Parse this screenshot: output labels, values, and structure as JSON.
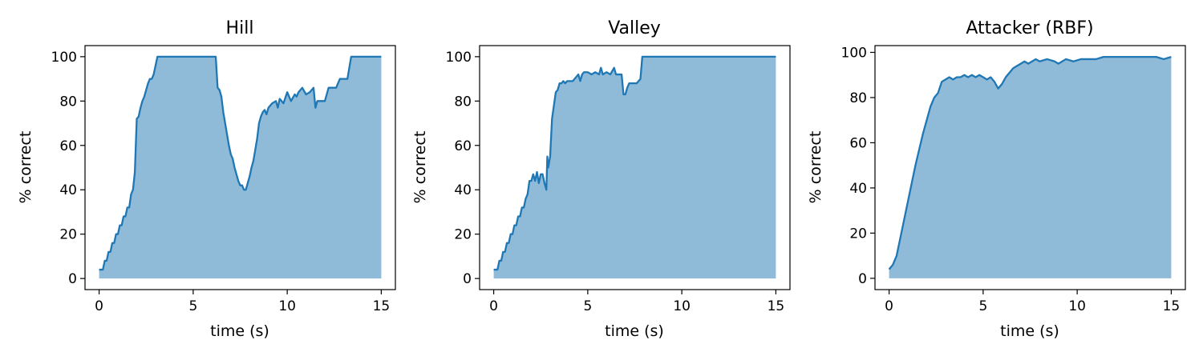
{
  "chart_data": [
    {
      "type": "area",
      "title": "Hill",
      "xlabel": "time (s)",
      "ylabel": "% correct",
      "xlim": [
        -0.75,
        15.75
      ],
      "ylim": [
        -5,
        105
      ],
      "xticks": [
        0,
        5,
        10,
        15
      ],
      "yticks": [
        0,
        20,
        40,
        60,
        80,
        100
      ],
      "color": "#1f77b4",
      "x": [
        0,
        0.2,
        0.3,
        0.4,
        0.5,
        0.6,
        0.7,
        0.8,
        0.9,
        1.0,
        1.1,
        1.2,
        1.3,
        1.4,
        1.5,
        1.6,
        1.7,
        1.8,
        1.9,
        2.0,
        2.1,
        2.2,
        2.3,
        2.4,
        2.5,
        2.6,
        2.7,
        2.8,
        2.9,
        3.0,
        3.1,
        3.2,
        6.2,
        6.3,
        6.4,
        6.5,
        6.6,
        6.7,
        6.8,
        6.9,
        7.0,
        7.1,
        7.2,
        7.3,
        7.4,
        7.5,
        7.6,
        7.7,
        7.8,
        8.0,
        8.1,
        8.2,
        8.3,
        8.4,
        8.5,
        8.6,
        8.7,
        8.8,
        8.9,
        9.0,
        9.2,
        9.4,
        9.5,
        9.6,
        9.8,
        10.0,
        10.2,
        10.4,
        10.5,
        10.6,
        10.8,
        11.0,
        11.2,
        11.4,
        11.5,
        11.6,
        11.8,
        12.0,
        12.2,
        12.4,
        12.6,
        12.8,
        13.0,
        13.2,
        13.3,
        13.4,
        15.0
      ],
      "values": [
        4,
        4,
        8,
        8,
        12,
        12,
        16,
        16,
        20,
        20,
        24,
        24,
        28,
        28,
        32,
        32,
        38,
        40,
        48,
        72,
        73,
        77,
        80,
        82,
        85,
        88,
        90,
        90,
        92,
        96,
        100,
        100,
        100,
        86,
        85,
        82,
        75,
        70,
        65,
        60,
        56,
        54,
        50,
        47,
        44,
        42,
        42,
        40,
        40,
        46,
        50,
        53,
        58,
        63,
        70,
        73,
        75,
        76,
        74,
        77,
        79,
        80,
        77,
        81,
        79,
        84,
        80,
        83,
        82,
        84,
        86,
        83,
        84,
        86,
        77,
        80,
        80,
        80,
        86,
        86,
        86,
        90,
        90,
        90,
        95,
        100,
        100
      ]
    },
    {
      "type": "area",
      "title": "Valley",
      "xlabel": "time (s)",
      "ylabel": "% correct",
      "xlim": [
        -0.75,
        15.75
      ],
      "ylim": [
        -5,
        105
      ],
      "xticks": [
        0,
        5,
        10,
        15
      ],
      "yticks": [
        0,
        20,
        40,
        60,
        80,
        100
      ],
      "color": "#1f77b4",
      "x": [
        0,
        0.2,
        0.3,
        0.4,
        0.5,
        0.6,
        0.7,
        0.8,
        0.9,
        1.0,
        1.1,
        1.2,
        1.3,
        1.4,
        1.5,
        1.6,
        1.7,
        1.8,
        1.9,
        2.0,
        2.1,
        2.2,
        2.3,
        2.4,
        2.5,
        2.6,
        2.7,
        2.8,
        2.85,
        2.9,
        3.0,
        3.1,
        3.2,
        3.3,
        3.4,
        3.5,
        3.6,
        3.7,
        3.8,
        3.9,
        4.0,
        4.2,
        4.4,
        4.5,
        4.6,
        4.7,
        4.8,
        5.0,
        5.2,
        5.4,
        5.6,
        5.7,
        5.8,
        6.0,
        6.2,
        6.4,
        6.5,
        6.6,
        6.8,
        6.9,
        7.0,
        7.1,
        7.2,
        7.4,
        7.6,
        7.8,
        7.9,
        15.0
      ],
      "values": [
        4,
        4,
        8,
        8,
        12,
        12,
        16,
        16,
        20,
        20,
        24,
        24,
        28,
        28,
        32,
        32,
        36,
        38,
        44,
        44,
        47,
        44,
        48,
        43,
        47,
        47,
        43,
        40,
        55,
        50,
        55,
        72,
        78,
        84,
        85,
        88,
        88,
        89,
        88,
        89,
        89,
        89,
        91,
        92,
        89,
        92,
        93,
        93,
        92,
        93,
        92,
        95,
        92,
        93,
        92,
        95,
        92,
        92,
        92,
        83,
        83,
        86,
        88,
        88,
        88,
        90,
        100,
        100
      ]
    },
    {
      "type": "area",
      "title": "Attacker (RBF)",
      "xlabel": "time (s)",
      "ylabel": "% correct",
      "xlim": [
        -0.75,
        15.75
      ],
      "ylim": [
        -5,
        103
      ],
      "xticks": [
        0,
        5,
        10,
        15
      ],
      "yticks": [
        0,
        20,
        40,
        60,
        80,
        100
      ],
      "color": "#1f77b4",
      "x": [
        0,
        0.2,
        0.4,
        0.6,
        0.8,
        1.0,
        1.2,
        1.4,
        1.6,
        1.8,
        2.0,
        2.2,
        2.4,
        2.6,
        2.8,
        3.0,
        3.2,
        3.4,
        3.6,
        3.8,
        4.0,
        4.2,
        4.4,
        4.6,
        4.8,
        5.0,
        5.2,
        5.4,
        5.6,
        5.8,
        6.0,
        6.2,
        6.4,
        6.6,
        6.8,
        7.0,
        7.2,
        7.4,
        7.6,
        7.8,
        8.0,
        8.4,
        8.8,
        9.0,
        9.4,
        9.8,
        10.2,
        10.6,
        11.0,
        11.4,
        11.8,
        12.2,
        12.6,
        13.0,
        13.4,
        13.8,
        14.2,
        14.6,
        15.0
      ],
      "values": [
        4,
        6,
        10,
        18,
        26,
        34,
        42,
        50,
        57,
        64,
        70,
        76,
        80,
        82,
        87,
        88,
        89,
        88,
        89,
        89,
        90,
        89,
        90,
        89,
        90,
        89,
        88,
        89,
        87,
        84,
        86,
        89,
        91,
        93,
        94,
        95,
        96,
        95,
        96,
        97,
        96,
        97,
        96,
        95,
        97,
        96,
        97,
        97,
        97,
        98,
        98,
        98,
        98,
        98,
        98,
        98,
        98,
        97,
        98
      ]
    }
  ]
}
